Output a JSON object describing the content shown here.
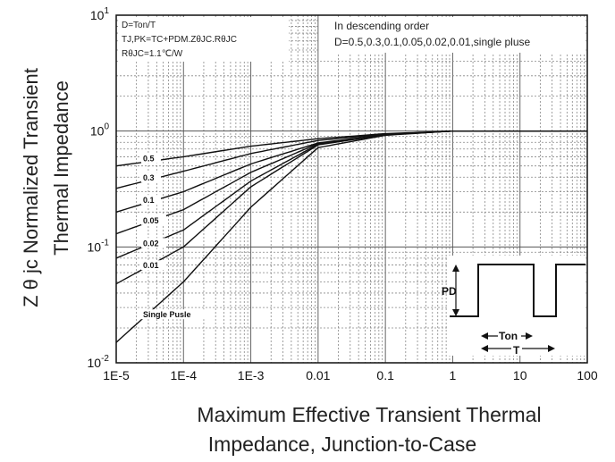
{
  "chart_data": {
    "type": "line",
    "xscale": "log",
    "yscale": "log",
    "xlim": [
      1e-05,
      100
    ],
    "ylim": [
      0.01,
      10
    ],
    "x_ticks": [
      "1E-5",
      "1E-4",
      "1E-3",
      "0.01",
      "0.1",
      "1",
      "10",
      "100"
    ],
    "y_ticks": [
      {
        "base": "10",
        "exp": "-2"
      },
      {
        "base": "10",
        "exp": "-1"
      },
      {
        "base": "10",
        "exp": "0"
      },
      {
        "base": "10",
        "exp": "1"
      }
    ],
    "ylabel_line1": "Z θ jc   Normalized Transient",
    "ylabel_line2": "Thermal   Impedance",
    "xlabel_line1": "Maximum Effective Transient Thermal",
    "xlabel_line2": "Impedance, Junction-to-Case",
    "notes_left": [
      "D=Ton/T",
      "TJ,PK=TC+PDM.ZθJC.RθJC",
      "RθJC=1.1℃/W"
    ],
    "notes_right": [
      "In descending order",
      "D=0.5,0.3,0.1,0.05,0.02,0.01,single pluse"
    ],
    "series": [
      {
        "name": "0.5",
        "x": [
          1e-05,
          0.0001,
          0.001,
          0.01,
          0.1,
          1,
          100
        ],
        "y": [
          0.5,
          0.6,
          0.74,
          0.86,
          0.95,
          1.0,
          1.0
        ]
      },
      {
        "name": "0.3",
        "x": [
          1e-05,
          0.0001,
          0.001,
          0.01,
          0.1,
          1,
          100
        ],
        "y": [
          0.32,
          0.45,
          0.64,
          0.83,
          0.94,
          1.0,
          1.0
        ]
      },
      {
        "name": "0.1",
        "x": [
          1e-05,
          0.0001,
          0.001,
          0.01,
          0.1,
          1,
          100
        ],
        "y": [
          0.2,
          0.3,
          0.52,
          0.79,
          0.93,
          1.0,
          1.0
        ]
      },
      {
        "name": "0.05",
        "x": [
          1e-05,
          0.0001,
          0.001,
          0.01,
          0.1,
          1,
          100
        ],
        "y": [
          0.13,
          0.21,
          0.44,
          0.78,
          0.93,
          1.0,
          1.0
        ]
      },
      {
        "name": "0.02",
        "x": [
          1e-05,
          0.0001,
          0.001,
          0.01,
          0.1,
          1,
          100
        ],
        "y": [
          0.08,
          0.14,
          0.37,
          0.77,
          0.93,
          1.0,
          1.0
        ]
      },
      {
        "name": "0.01",
        "x": [
          1e-05,
          0.0001,
          0.001,
          0.01,
          0.1,
          1,
          100
        ],
        "y": [
          0.048,
          0.1,
          0.33,
          0.76,
          0.93,
          1.0,
          1.0
        ]
      },
      {
        "name": "Single Pusle",
        "x": [
          1e-05,
          0.0001,
          0.001,
          0.01,
          0.1,
          1,
          100
        ],
        "y": [
          0.015,
          0.05,
          0.22,
          0.72,
          0.92,
          1.0,
          1.0
        ]
      }
    ],
    "pulse_diagram": {
      "pd_label": "PD",
      "ton_label": "Ton",
      "t_label": "T"
    }
  }
}
